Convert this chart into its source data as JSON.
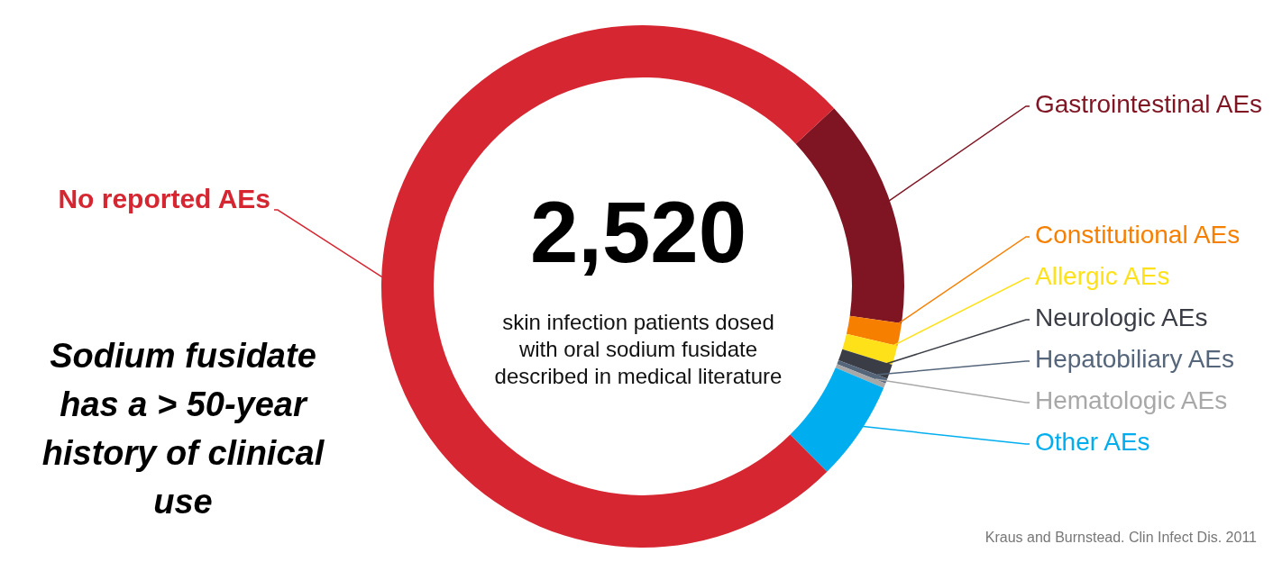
{
  "chart_data": {
    "type": "donut",
    "categories": [
      "Gastrointestinal AEs",
      "Constitutional AEs",
      "Allergic AEs",
      "Neurologic AEs",
      "Hepatobiliary AEs",
      "Hematologic AEs",
      "Other AEs",
      "No reported AEs"
    ],
    "values": [
      14.2,
      1.4,
      1.2,
      0.9,
      0.3,
      0.3,
      6.2,
      75.5
    ],
    "colors": [
      "#7f1423",
      "#f77f00",
      "#ffe11a",
      "#3a3d45",
      "#55657a",
      "#a8a8a8",
      "#00aeef",
      "#d62631"
    ],
    "annotations": [
      "2,520",
      "skin infection patients dosed with oral sodium fusidate described in medical literature",
      "Sodium fusidate has a > 50-year history of clinical use",
      "Kraus and Burnstead. Clin Infect Dis. 2011"
    ]
  }
}
